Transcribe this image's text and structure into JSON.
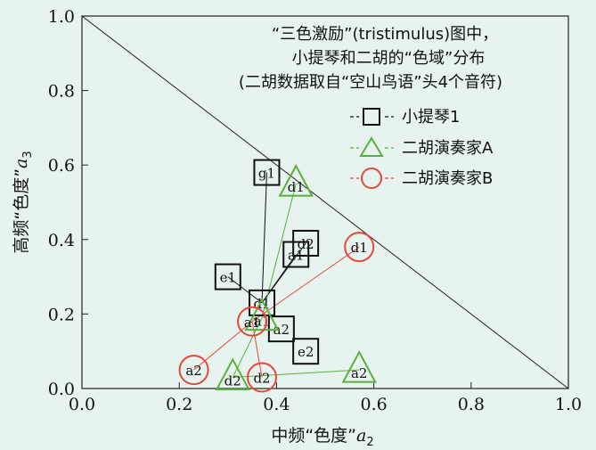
{
  "chart_data": {
    "type": "scatter",
    "title_lines": [
      "“三色激励”(tristimulus)图中，",
      "小提琴和二胡的“色域”分布",
      "(二胡数据取自“空山鸟语”头4个音符)"
    ],
    "xlabel": "中频“色度”",
    "xlabel_var": "a",
    "xlabel_sub": "2",
    "ylabel": "高频“色度”",
    "ylabel_var": "a",
    "ylabel_sub": "3",
    "xlim": [
      0,
      1
    ],
    "ylim": [
      0,
      1
    ],
    "xticks": [
      "0.0",
      "0.2",
      "0.4",
      "0.6",
      "0.8",
      "1.0"
    ],
    "yticks": [
      "0.0",
      "0.2",
      "0.4",
      "0.6",
      "0.8",
      "1.0"
    ],
    "grid": false,
    "legend_position": "top-right",
    "reference_line": [
      [
        0,
        1
      ],
      [
        1,
        0
      ]
    ],
    "series": [
      {
        "name": "小提琴1",
        "marker": "square",
        "color": "#111111",
        "line_color": "#111111",
        "points": [
          {
            "label": "g1",
            "x": 0.38,
            "y": 0.58
          },
          {
            "label": "d1",
            "x": 0.37,
            "y": 0.23
          },
          {
            "label": "a1",
            "x": 0.44,
            "y": 0.36
          },
          {
            "label": "e1",
            "x": 0.3,
            "y": 0.3
          },
          {
            "label": "d2",
            "x": 0.46,
            "y": 0.39
          },
          {
            "label": "a2",
            "x": 0.41,
            "y": 0.16
          },
          {
            "label": "e2",
            "x": 0.46,
            "y": 0.1
          }
        ],
        "connectors": [
          [
            0,
            1
          ],
          [
            3,
            1
          ],
          [
            2,
            1
          ],
          [
            4,
            1
          ]
        ]
      },
      {
        "name": "二胡演奏家A",
        "marker": "triangle",
        "color": "#5bb03c",
        "line_color": "#5bb03c",
        "points": [
          {
            "label": "d1",
            "x": 0.44,
            "y": 0.55
          },
          {
            "label": "a1",
            "x": 0.37,
            "y": 0.19
          },
          {
            "label": "d2",
            "x": 0.31,
            "y": 0.03
          },
          {
            "label": "a2",
            "x": 0.57,
            "y": 0.05
          }
        ],
        "connectors": [
          [
            0,
            1
          ],
          [
            1,
            2
          ],
          [
            2,
            3
          ]
        ]
      },
      {
        "name": "二胡演奏家B",
        "marker": "circle",
        "color": "#e5483a",
        "line_color": "#e5483a",
        "points": [
          {
            "label": "d1",
            "x": 0.57,
            "y": 0.38
          },
          {
            "label": "a1",
            "x": 0.35,
            "y": 0.18
          },
          {
            "label": "a2",
            "x": 0.23,
            "y": 0.05
          },
          {
            "label": "d2",
            "x": 0.37,
            "y": 0.03
          }
        ],
        "connectors": [
          [
            0,
            1
          ],
          [
            1,
            2
          ],
          [
            1,
            3
          ]
        ]
      }
    ]
  }
}
